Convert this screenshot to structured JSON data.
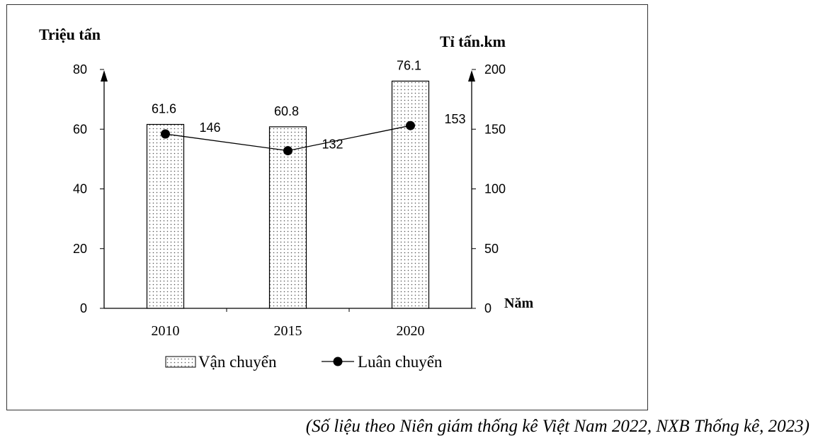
{
  "chart_data": {
    "type": "bar+line",
    "categories": [
      "2010",
      "2015",
      "2020"
    ],
    "series": [
      {
        "name": "Vận chuyển",
        "type": "bar",
        "axis": "left",
        "values": [
          61.6,
          60.8,
          76.1
        ]
      },
      {
        "name": "Luân chuyển",
        "type": "line",
        "axis": "right",
        "values": [
          146,
          132,
          153
        ]
      }
    ],
    "ylabel_left": "Triệu tấn",
    "ylabel_right": "Tỉ tấn.km",
    "xlabel": "Năm",
    "ylim_left": [
      0,
      80
    ],
    "ylim_right": [
      0,
      200
    ],
    "yticks_left": [
      0,
      20,
      40,
      60,
      80
    ],
    "yticks_right": [
      0,
      50,
      100,
      150,
      200
    ],
    "grid": false,
    "legend_position": "bottom"
  },
  "source_note": "(Số liệu theo Niên giám thống kê Việt Nam 2022, NXB Thống kê, 2023)"
}
